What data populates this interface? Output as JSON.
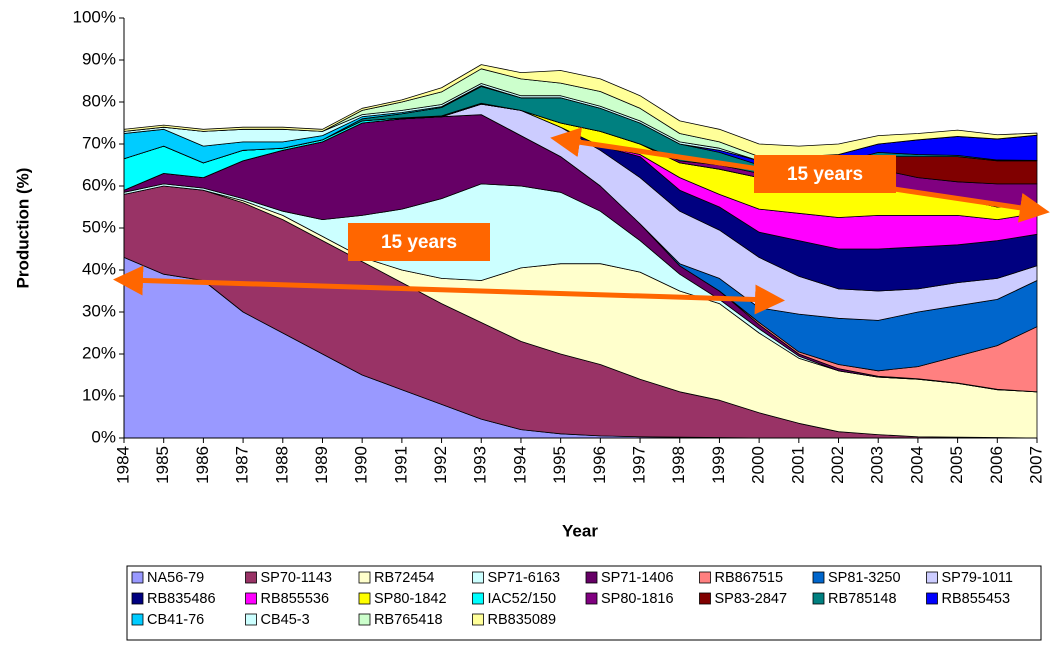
{
  "chart_data": {
    "type": "area",
    "stacked": true,
    "xlabel": "Year",
    "ylabel": "Production (%)",
    "categories": [
      "1984",
      "1985",
      "1986",
      "1987",
      "1988",
      "1989",
      "1990",
      "1991",
      "1992",
      "1993",
      "1994",
      "1995",
      "1996",
      "1997",
      "1998",
      "1999",
      "2000",
      "2001",
      "2002",
      "2003",
      "2004",
      "2005",
      "2006",
      "2007"
    ],
    "ylim": [
      0,
      100
    ],
    "yticks": [
      {
        "value": 0,
        "label": "0%"
      },
      {
        "value": 10,
        "label": "10%"
      },
      {
        "value": 20,
        "label": "20%"
      },
      {
        "value": 30,
        "label": "30%"
      },
      {
        "value": 40,
        "label": "40%"
      },
      {
        "value": 50,
        "label": "50%"
      },
      {
        "value": 60,
        "label": "60%"
      },
      {
        "value": 70,
        "label": "70%"
      },
      {
        "value": 80,
        "label": "80%"
      },
      {
        "value": 90,
        "label": "90%"
      },
      {
        "value": 100,
        "label": "100%"
      }
    ],
    "annotations": [
      "15 years",
      "15 years"
    ],
    "series": [
      {
        "name": "NA56-79",
        "color": "#9999ff",
        "values": [
          43,
          39,
          37.5,
          30,
          25,
          20,
          15,
          11.5,
          8,
          4.5,
          2,
          1,
          0.5,
          0.3,
          0.2,
          0.1,
          0,
          0,
          0,
          0,
          0,
          0,
          0,
          0
        ]
      },
      {
        "name": "SP70-1143",
        "color": "#993366",
        "values": [
          15,
          21,
          21.5,
          26,
          27,
          27,
          27,
          25.5,
          24,
          23,
          21,
          19,
          17,
          13.7,
          10.8,
          8.9,
          6,
          3.5,
          1.5,
          0.8,
          0.3,
          0.2,
          0.1,
          0
        ]
      },
      {
        "name": "RB72454",
        "color": "#ffffcc",
        "values": [
          0,
          0,
          0,
          0.5,
          1,
          1,
          1,
          3,
          6,
          10,
          17.5,
          21.5,
          24,
          25.5,
          24,
          23,
          19,
          15.5,
          14.5,
          13.7,
          13.7,
          12.8,
          11.4,
          11
        ]
      },
      {
        "name": "SP71-6163",
        "color": "#ccffff",
        "values": [
          0.5,
          0.5,
          0.5,
          0.5,
          1,
          4,
          10,
          14.5,
          19,
          23,
          19.5,
          17,
          12.5,
          7.5,
          4,
          1,
          1,
          0.5,
          0,
          0,
          0,
          0,
          0,
          0
        ]
      },
      {
        "name": "SP71-1406",
        "color": "#660066",
        "values": [
          0.5,
          2.5,
          2.5,
          9,
          14.5,
          18.5,
          22,
          21.5,
          19.5,
          16.5,
          12,
          8.5,
          6,
          4,
          2,
          2,
          1,
          0.5,
          0.5,
          0.2,
          0.1,
          0.1,
          0.1,
          0
        ]
      },
      {
        "name": "RB867515",
        "color": "#ff8080",
        "values": [
          0,
          0,
          0,
          0,
          0,
          0,
          0,
          0,
          0,
          0,
          0,
          0,
          0,
          0,
          0,
          0,
          0.5,
          0.5,
          1,
          1.3,
          2.9,
          6.4,
          10.4,
          15.5
        ]
      },
      {
        "name": "SP81-3250",
        "color": "#0066cc",
        "values": [
          0,
          0,
          0,
          0,
          0,
          0,
          0,
          0,
          0,
          0,
          0,
          0,
          0,
          0,
          0.5,
          3,
          3.5,
          9,
          11,
          12,
          13,
          12,
          11,
          11
        ]
      },
      {
        "name": "SP79-1011",
        "color": "#ccccff",
        "values": [
          0,
          0,
          0,
          0,
          0,
          0,
          0,
          0,
          0,
          2.5,
          6,
          7,
          8.5,
          11,
          12.5,
          11.5,
          12,
          9,
          7,
          7,
          5.5,
          5.5,
          5,
          3.5
        ]
      },
      {
        "name": "RB835486",
        "color": "#000080",
        "values": [
          0,
          0,
          0,
          0,
          0,
          0,
          0,
          0,
          0,
          0,
          0,
          0,
          1,
          5,
          5,
          5.5,
          6,
          8.5,
          9.5,
          10,
          10,
          9,
          9,
          7.5
        ]
      },
      {
        "name": "RB855536",
        "color": "#ff00ff",
        "values": [
          0,
          0,
          0,
          0,
          0,
          0,
          0,
          0,
          0,
          0,
          0,
          0,
          0,
          0.5,
          3,
          3,
          5.5,
          6.5,
          7.5,
          8,
          7.5,
          7,
          5,
          5
        ]
      },
      {
        "name": "SP80-1842",
        "color": "#ffff00",
        "values": [
          0,
          0,
          0,
          0,
          0,
          0,
          0,
          0,
          0,
          0,
          0,
          1,
          3.5,
          2.5,
          3.5,
          6,
          7.5,
          8.5,
          9,
          7,
          5.5,
          4,
          3,
          2
        ]
      },
      {
        "name": "IAC52/150",
        "color": "#00ffff",
        "values": [
          7.5,
          6.5,
          3.5,
          2.5,
          0.5,
          0.5,
          0.5,
          0.2,
          0.2,
          0.2,
          0,
          0,
          0,
          0,
          0,
          0,
          0,
          0,
          0,
          0,
          0,
          0,
          0,
          0
        ]
      },
      {
        "name": "SP80-1816",
        "color": "#800080",
        "values": [
          0,
          0,
          0,
          0,
          0,
          0,
          0,
          0,
          0,
          0,
          0,
          0,
          0,
          0,
          0.5,
          1,
          1,
          1,
          1.5,
          4,
          3.5,
          4,
          5.5,
          5
        ]
      },
      {
        "name": "SP83-2847",
        "color": "#800000",
        "values": [
          0,
          0,
          0,
          0,
          0,
          0,
          0,
          0,
          0,
          0,
          0,
          0,
          0,
          0,
          0,
          0,
          0,
          0.5,
          1,
          3,
          5,
          6,
          5.5,
          5.5
        ]
      },
      {
        "name": "RB785148",
        "color": "#008080",
        "values": [
          0,
          0,
          0,
          0,
          0,
          0,
          0.5,
          1,
          2,
          4,
          3,
          6,
          5.5,
          5,
          4,
          3,
          2,
          2,
          1.5,
          1,
          0.5,
          0.3,
          0.2,
          0.1
        ]
      },
      {
        "name": "RB855453",
        "color": "#0000ff",
        "values": [
          0,
          0,
          0,
          0,
          0,
          0,
          0,
          0,
          0,
          0,
          0,
          0,
          0,
          0,
          0,
          0.5,
          1,
          1,
          2,
          2,
          3.5,
          4.5,
          5,
          6
        ]
      },
      {
        "name": "CB41-76",
        "color": "#00ccff",
        "values": [
          6,
          4,
          4,
          2,
          1.5,
          1,
          0.5,
          0.3,
          0.2,
          0.2,
          0,
          0,
          0,
          0,
          0,
          0,
          0,
          0,
          0,
          0,
          0,
          0,
          0,
          0
        ]
      },
      {
        "name": "CB45-3",
        "color": "#ccffff",
        "values": [
          0.5,
          0.5,
          3.5,
          3,
          3,
          1,
          0.5,
          0.5,
          0.5,
          0.5,
          0.5,
          0.5,
          0.5,
          0.5,
          0.5,
          0.5,
          0,
          0,
          0,
          0,
          0,
          0,
          0,
          0
        ]
      },
      {
        "name": "RB765418",
        "color": "#ccffcc",
        "values": [
          0,
          0,
          0,
          0,
          0,
          0,
          1,
          2,
          3,
          3.5,
          4,
          3,
          3.5,
          3,
          2,
          1.5,
          1,
          0.5,
          0,
          0,
          0,
          0,
          0,
          0
        ]
      },
      {
        "name": "RB835089",
        "color": "#ffff99",
        "values": [
          0.5,
          0.5,
          0.5,
          0.5,
          0.5,
          0.5,
          0.5,
          0.5,
          1,
          1,
          1.5,
          3,
          3,
          3,
          3,
          3,
          3,
          2.5,
          2.5,
          2,
          1.5,
          1.5,
          1,
          0.5
        ]
      }
    ]
  }
}
